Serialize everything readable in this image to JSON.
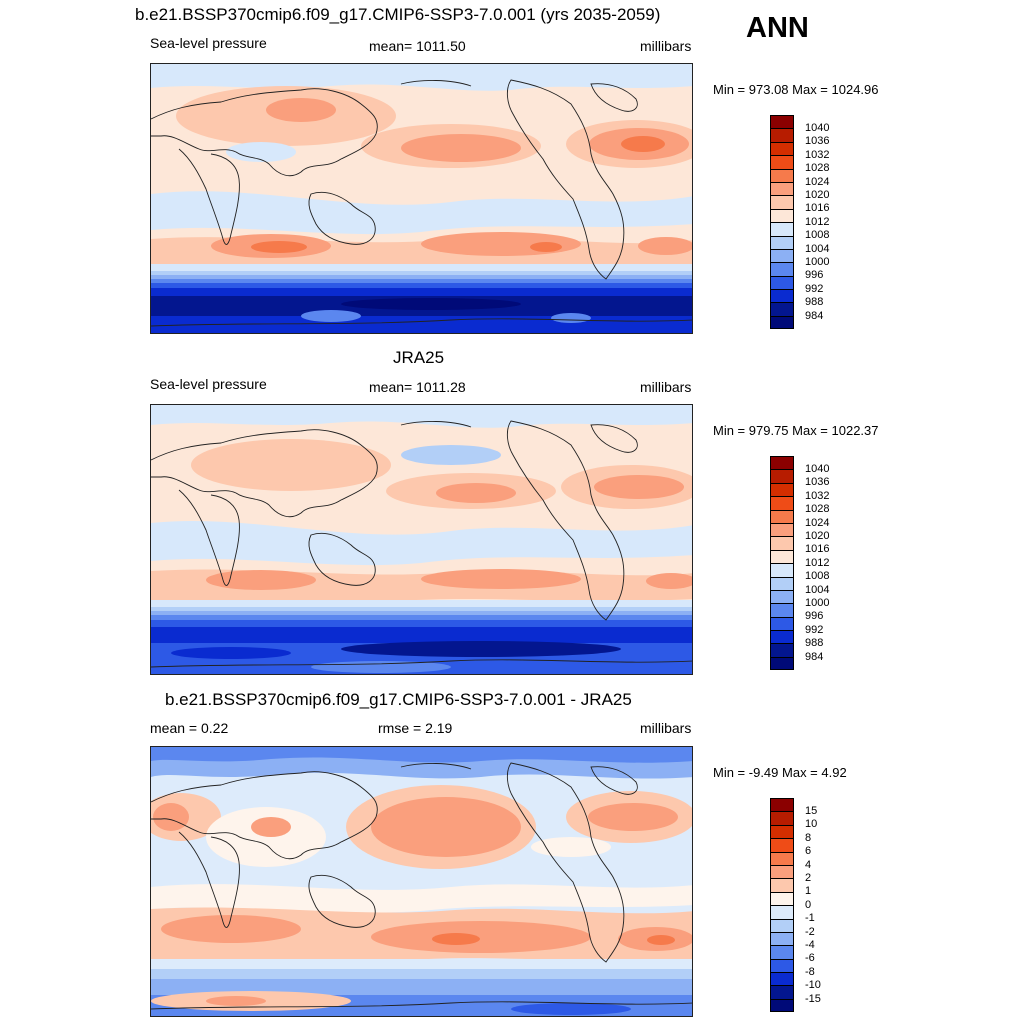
{
  "season": "ANN",
  "colors": {
    "land_outline": "#222222"
  },
  "panels": [
    {
      "title": "b.e21.BSSP370cmip6.f09_g17.CMIP6-SSP3-7.0.001 (yrs 2035-2059)",
      "left_label": "Sea-level pressure",
      "center_label": "mean= 1011.50",
      "right_label": "millibars",
      "minmax": "Min = 973.08 Max = 1024.96",
      "colorbar": {
        "ticks": [
          "1040",
          "1036",
          "1032",
          "1028",
          "1024",
          "1020",
          "1016",
          "1012",
          "1008",
          "1004",
          "1000",
          "996",
          "992",
          "988",
          "984"
        ],
        "colors": [
          "#8b0000",
          "#b71c00",
          "#d42e00",
          "#ef4c17",
          "#f67a4b",
          "#fa9f7d",
          "#fdc8ad",
          "#fde7d8",
          "#d7e8fb",
          "#b2cff7",
          "#8cb0f4",
          "#5b87ef",
          "#2d59e6",
          "#0a2bd0",
          "#03168f",
          "#000a78"
        ]
      }
    },
    {
      "title": "JRA25",
      "left_label": "Sea-level pressure",
      "center_label": "mean= 1011.28",
      "right_label": "millibars",
      "minmax": "Min = 979.75 Max = 1022.37",
      "colorbar": {
        "ticks": [
          "1040",
          "1036",
          "1032",
          "1028",
          "1024",
          "1020",
          "1016",
          "1012",
          "1008",
          "1004",
          "1000",
          "996",
          "992",
          "988",
          "984"
        ],
        "colors": [
          "#8b0000",
          "#b71c00",
          "#d42e00",
          "#ef4c17",
          "#f67a4b",
          "#fa9f7d",
          "#fdc8ad",
          "#fde7d8",
          "#d7e8fb",
          "#b2cff7",
          "#8cb0f4",
          "#5b87ef",
          "#2d59e6",
          "#0a2bd0",
          "#03168f",
          "#000a78"
        ]
      }
    },
    {
      "title": "b.e21.BSSP370cmip6.f09_g17.CMIP6-SSP3-7.0.001 - JRA25",
      "left_label": "mean =   0.22",
      "center_label": "rmse =   2.19",
      "right_label": "millibars",
      "minmax": "Min =  -9.49 Max =   4.92",
      "colorbar": {
        "ticks": [
          "15",
          "10",
          "8",
          "6",
          "4",
          "2",
          "1",
          "0",
          "-1",
          "-2",
          "-4",
          "-6",
          "-8",
          "-10",
          "-15"
        ],
        "colors": [
          "#8b0000",
          "#b71c00",
          "#d42e00",
          "#ef4c17",
          "#f67a4b",
          "#fa9f7d",
          "#fdc8ad",
          "#fef4ec",
          "#ddebfb",
          "#b2cff7",
          "#8cb0f4",
          "#5b87ef",
          "#2d59e6",
          "#0a2bd0",
          "#03168f",
          "#000a78"
        ]
      }
    }
  ]
}
